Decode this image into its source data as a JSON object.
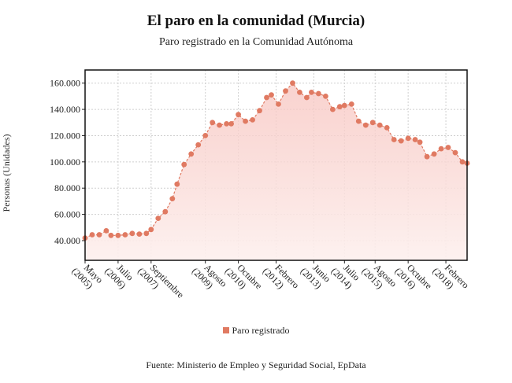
{
  "title": "El paro en la comunidad (Murcia)",
  "subtitle": "Paro registrado en la Comunidad Autónoma",
  "source": "Fuente: Ministerio de Empleo y Seguridad Social, EpData",
  "colors": {
    "series": "#e07a62",
    "fill_top": "#f7c4bf",
    "fill_bottom": "#fdf0ee",
    "grid": "#cfcfcf"
  },
  "chart_data": {
    "type": "area",
    "ylabel": "Personas (Unidades)",
    "ylim": [
      25000,
      170000
    ],
    "yticks": [
      40000,
      60000,
      80000,
      100000,
      120000,
      140000,
      160000
    ],
    "ytick_labels": [
      "40.000",
      "60.000",
      "80.000",
      "100.000",
      "120.000",
      "140.000",
      "160.000"
    ],
    "x_range": [
      0,
      162
    ],
    "xticks": [
      {
        "x": 0,
        "month": "Mayo",
        "year": "(2005)"
      },
      {
        "x": 14,
        "month": "Julio",
        "year": "(2006)"
      },
      {
        "x": 28,
        "month": "Septiembre",
        "year": "(2007)"
      },
      {
        "x": 51,
        "month": "Agosto",
        "year": "(2009)"
      },
      {
        "x": 65,
        "month": "Octubre",
        "year": "(2010)"
      },
      {
        "x": 81,
        "month": "Febrero",
        "year": "(2012)"
      },
      {
        "x": 97,
        "month": "Junio",
        "year": "(2013)"
      },
      {
        "x": 110,
        "month": "Julio",
        "year": "(2014)"
      },
      {
        "x": 123,
        "month": "Agosto",
        "year": "(2015)"
      },
      {
        "x": 137,
        "month": "Octubre",
        "year": "(2016)"
      },
      {
        "x": 153,
        "month": "Febrero",
        "year": "(2018)"
      }
    ],
    "series": [
      {
        "name": "Paro registrado",
        "x": [
          0,
          3,
          6,
          9,
          11,
          14,
          17,
          20,
          23,
          26,
          28,
          31,
          34,
          37,
          39,
          42,
          45,
          48,
          51,
          54,
          57,
          60,
          62,
          65,
          68,
          71,
          74,
          77,
          79,
          82,
          85,
          88,
          91,
          94,
          96,
          99,
          102,
          105,
          108,
          110,
          113,
          116,
          119,
          122,
          125,
          128,
          131,
          134,
          137,
          140,
          142,
          145,
          148,
          151,
          154,
          157,
          160,
          162
        ],
        "y": [
          42000,
          44500,
          44500,
          47500,
          44000,
          44000,
          44500,
          45500,
          45000,
          45500,
          48500,
          57000,
          62000,
          72000,
          83000,
          98000,
          106000,
          113000,
          120000,
          130000,
          128000,
          129000,
          129000,
          136000,
          131000,
          132000,
          139000,
          149000,
          151000,
          144000,
          154000,
          160000,
          153000,
          149000,
          153000,
          152000,
          150000,
          140000,
          142000,
          143000,
          144000,
          131000,
          128000,
          130000,
          128000,
          126000,
          117000,
          116000,
          118000,
          117000,
          115000,
          104000,
          106000,
          110000,
          111000,
          107000,
          100000,
          99000
        ]
      }
    ]
  }
}
